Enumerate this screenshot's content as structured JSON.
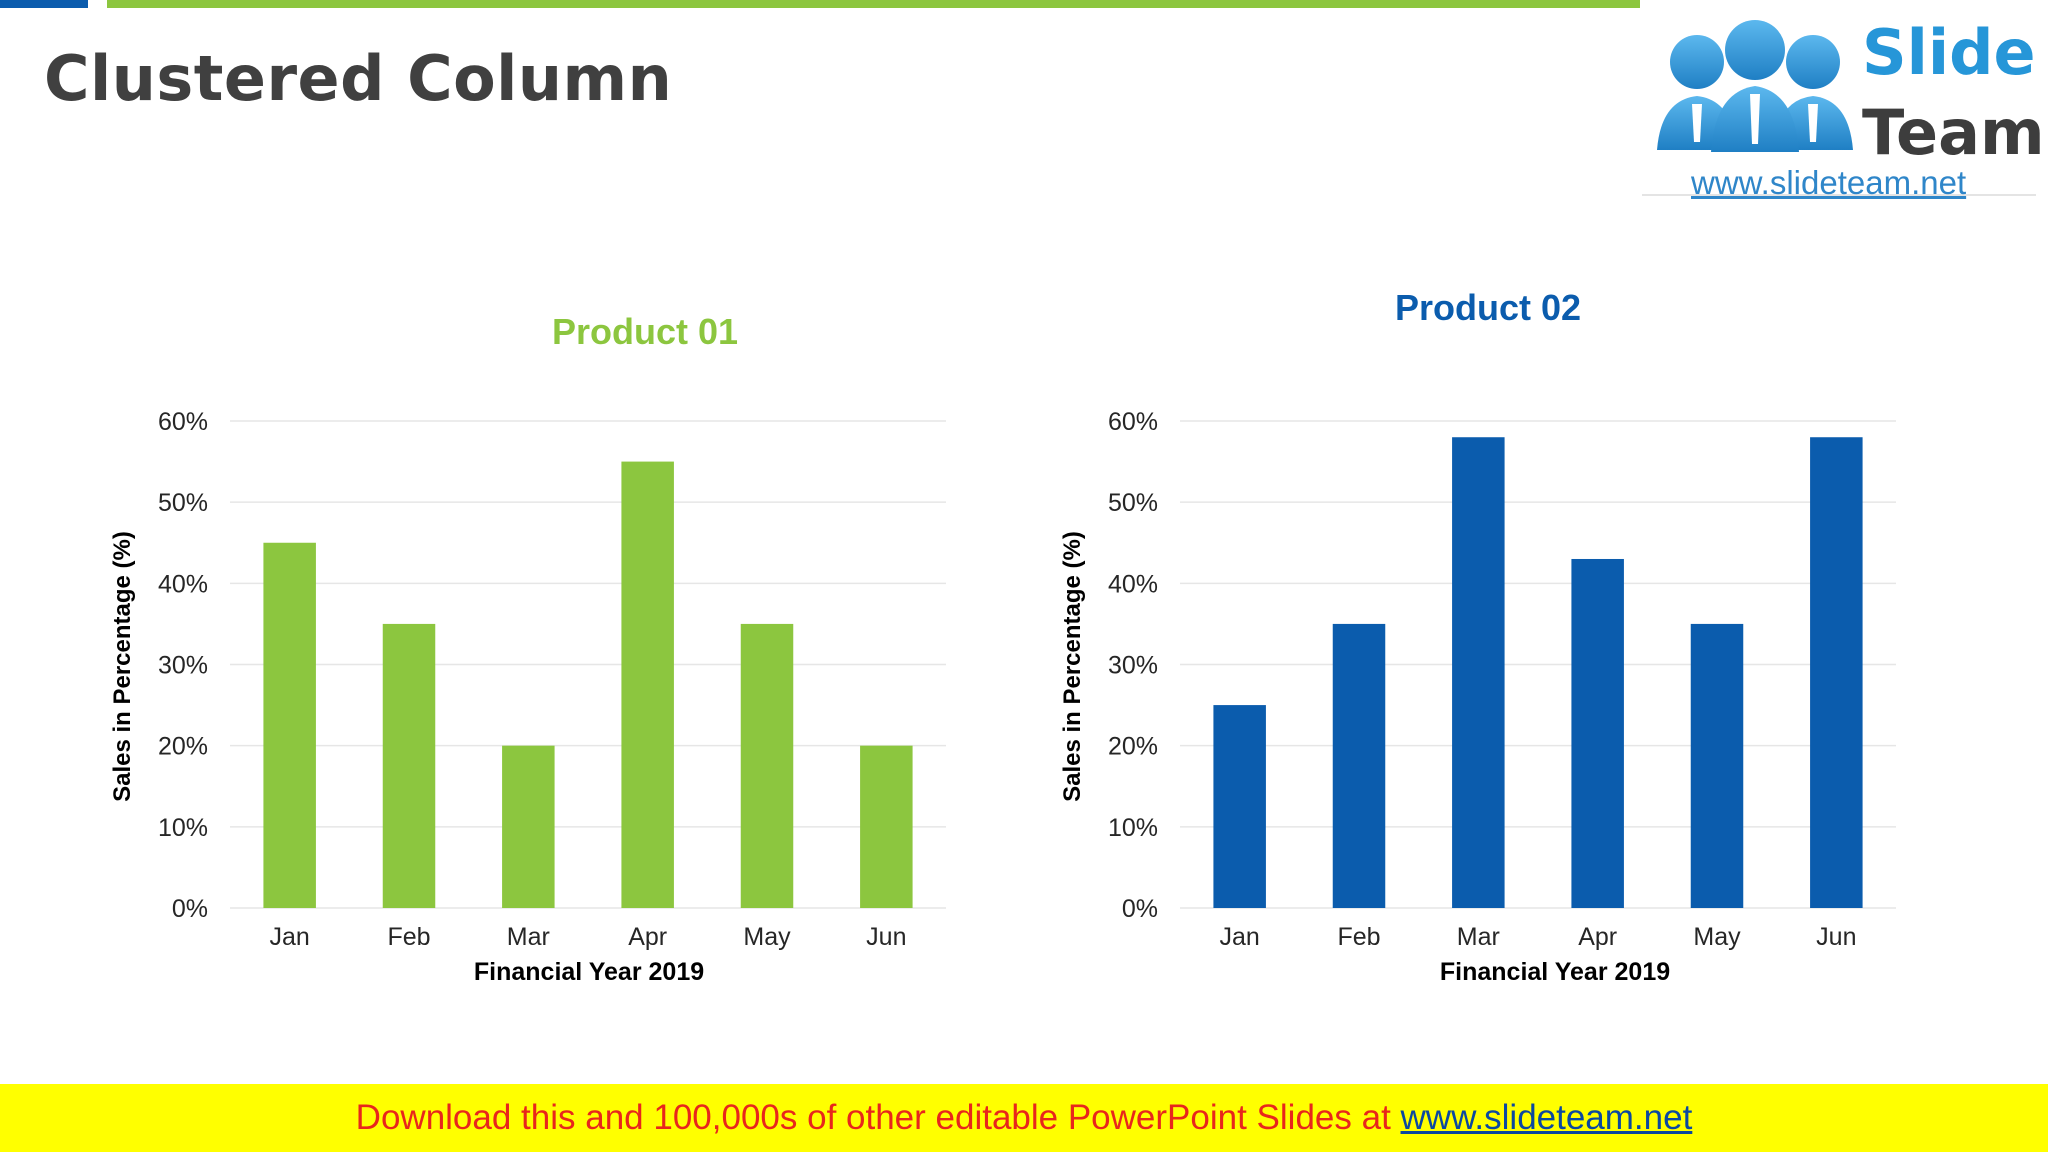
{
  "slide": {
    "title": "Clustered Column",
    "accent_green": "#8cc63f",
    "accent_blue": "#0b5cad"
  },
  "logo": {
    "word1": "Slide",
    "word2": "Team",
    "url": "www.slideteam.net",
    "icon": "people-group-icon"
  },
  "footer": {
    "text": "Download this and 100,000s of other editable PowerPoint Slides at ",
    "link": "www.slideteam.net"
  },
  "chart_data": [
    {
      "type": "bar",
      "title": "Product 01",
      "categories": [
        "Jan",
        "Feb",
        "Mar",
        "Apr",
        "May",
        "Jun"
      ],
      "values": [
        45,
        35,
        20,
        55,
        35,
        20
      ],
      "xlabel": "Financial Year 2019",
      "ylabel": "Sales in Percentage (%)",
      "ylim": [
        0,
        60
      ],
      "yticks": [
        "0%",
        "10%",
        "20%",
        "30%",
        "40%",
        "50%",
        "60%"
      ],
      "color": "#8cc63f",
      "title_color": "#8cc63f",
      "grid": true,
      "legend": "none"
    },
    {
      "type": "bar",
      "title": "Product 02",
      "categories": [
        "Jan",
        "Feb",
        "Mar",
        "Apr",
        "May",
        "Jun"
      ],
      "values": [
        25,
        35,
        58,
        43,
        35,
        58
      ],
      "xlabel": "Financial Year 2019",
      "ylabel": "Sales in Percentage (%)",
      "ylim": [
        0,
        60
      ],
      "yticks": [
        "0%",
        "10%",
        "20%",
        "30%",
        "40%",
        "50%",
        "60%"
      ],
      "color": "#0b5cad",
      "title_color": "#0b5cad",
      "grid": true,
      "legend": "none"
    }
  ]
}
